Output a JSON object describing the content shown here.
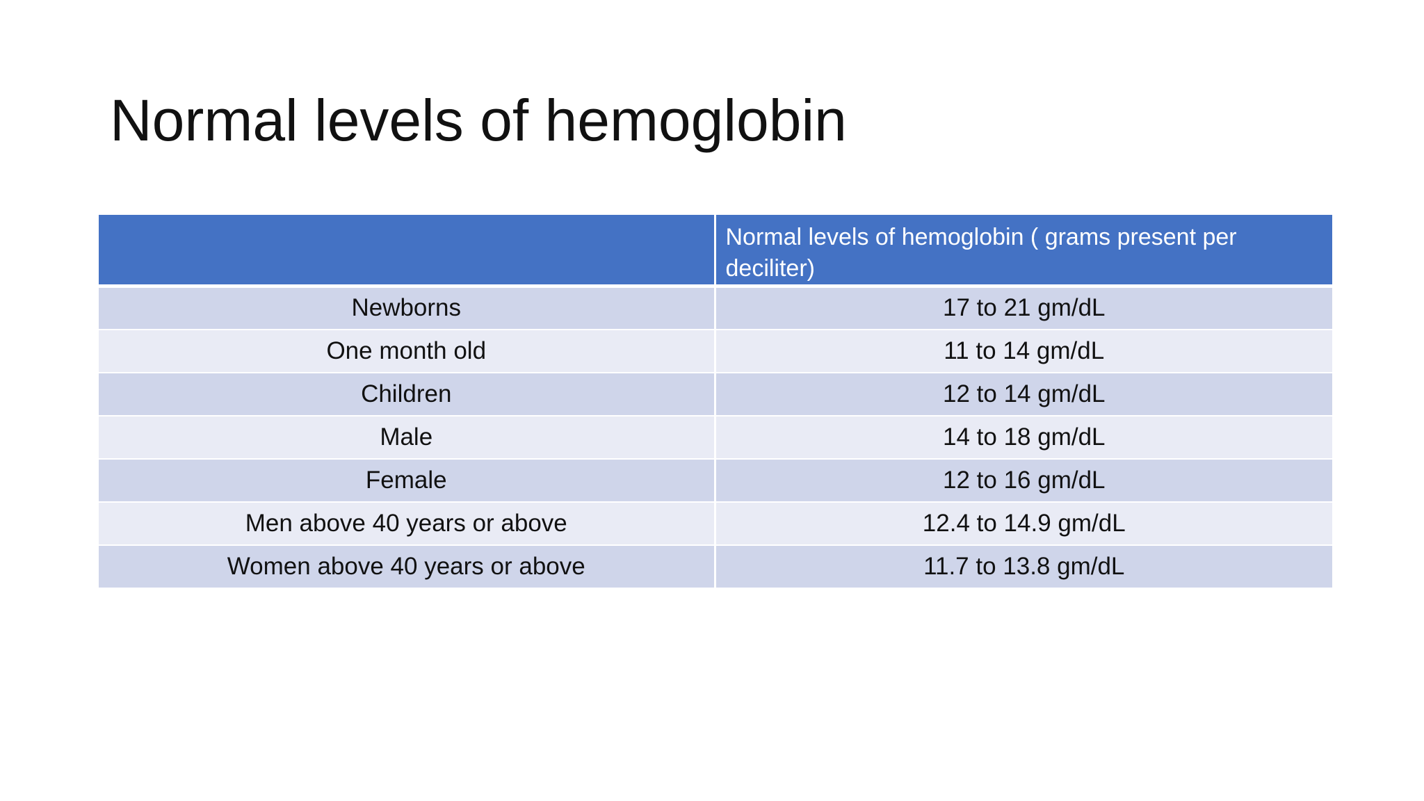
{
  "slide": {
    "title": "Normal levels of hemoglobin"
  },
  "table": {
    "headers": [
      "",
      "Normal levels of hemoglobin ( grams present per deciliter)"
    ],
    "rows": [
      {
        "group": "Newborns",
        "level": "17 to 21 gm/dL"
      },
      {
        "group": "One month old",
        "level": "11 to 14 gm/dL"
      },
      {
        "group": "Children",
        "level": "12 to 14 gm/dL"
      },
      {
        "group": "Male",
        "level": "14 to 18 gm/dL"
      },
      {
        "group": "Female",
        "level": "12 to 16 gm/dL"
      },
      {
        "group": "Men above 40 years or above",
        "level": "12.4 to 14.9 gm/dL"
      },
      {
        "group": "Women above 40 years or above",
        "level": "11.7 to 13.8 gm/dL"
      }
    ]
  },
  "colors": {
    "header_fill": "#4472c4",
    "row_band_dark": "#cfd5ea",
    "row_band_light": "#e9ebf5",
    "background": "#ffffff",
    "text": "#111111"
  }
}
